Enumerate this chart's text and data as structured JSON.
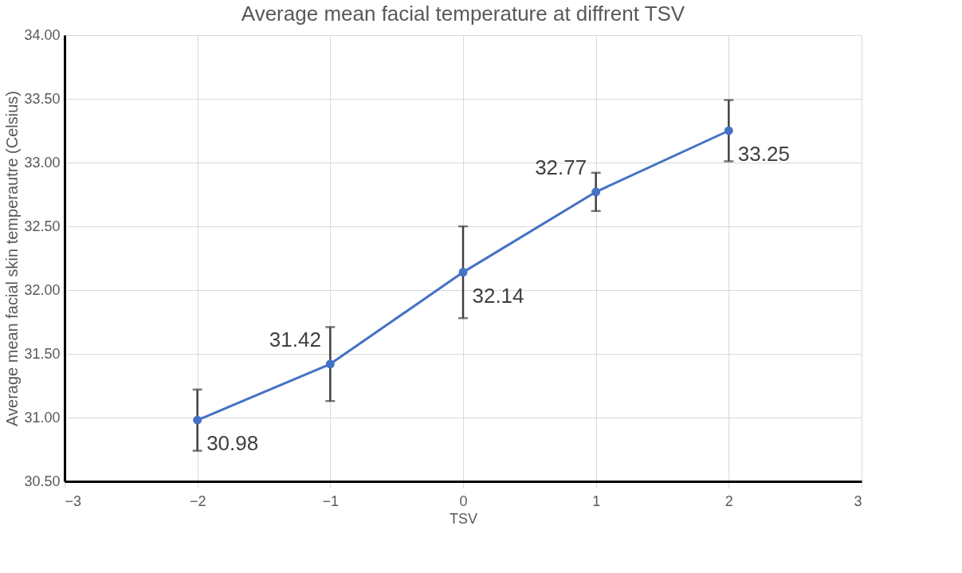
{
  "chart_data": {
    "type": "line",
    "title": "Average mean facial temperature at diffrent TSV",
    "xlabel": "TSV",
    "ylabel": "Average mean facial skin temperautre (Celsius)",
    "x": [
      -2,
      -1,
      0,
      1,
      2
    ],
    "series": [
      {
        "color": "#4472c4",
        "values": [
          30.98,
          31.42,
          32.14,
          32.77,
          33.25
        ],
        "errors": [
          0.24,
          0.29,
          0.36,
          0.15,
          0.24
        ]
      }
    ],
    "xlim": [
      -3,
      3
    ],
    "xticks": [
      -3,
      -2,
      -1,
      0,
      1,
      2,
      3
    ],
    "ylim": [
      30.5,
      34.0
    ],
    "yticks": [
      {
        "value": 30.5,
        "label": "30.50"
      },
      {
        "value": 31.0,
        "label": "31.00"
      },
      {
        "value": 31.5,
        "label": "31.50"
      },
      {
        "value": 32.0,
        "label": "32.00"
      },
      {
        "value": 32.5,
        "label": "32.50"
      },
      {
        "value": 33.0,
        "label": "33.00"
      },
      {
        "value": 33.5,
        "label": "33.50"
      },
      {
        "value": 34.0,
        "label": "34.00"
      }
    ],
    "data_labels": true,
    "grid": true,
    "marker": "circle",
    "line_style": "solid"
  }
}
